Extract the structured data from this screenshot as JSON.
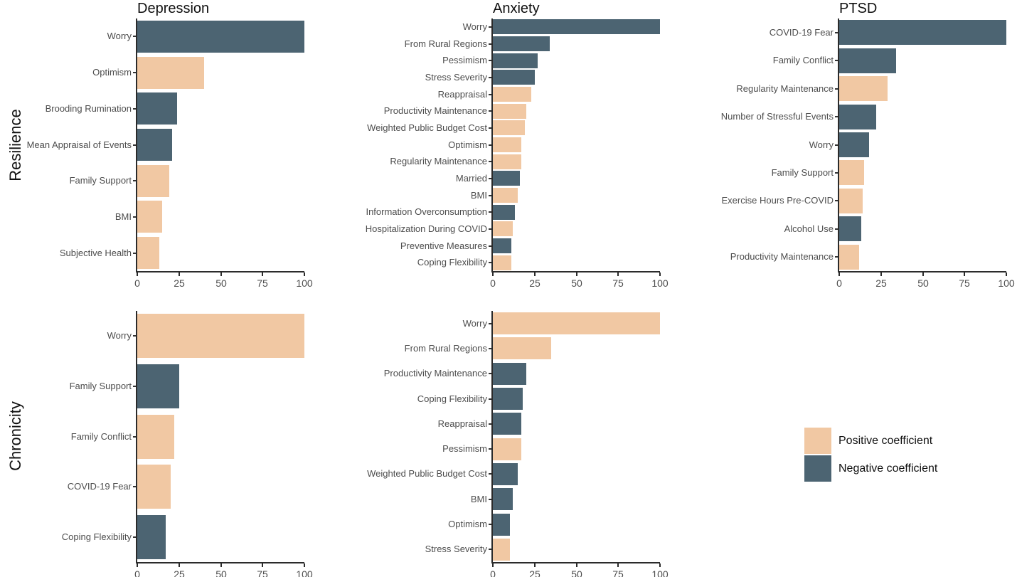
{
  "figure": {
    "row_labels": [
      "Resilience",
      "Chronicity"
    ],
    "column_titles": [
      "Depression",
      "Anxiety",
      "PTSD"
    ],
    "legend": {
      "items": [
        {
          "label": "Positive coefficient",
          "sign": "positive",
          "color": "#F1C8A3"
        },
        {
          "label": "Negative coefficient",
          "sign": "negative",
          "color": "#4C6472"
        }
      ]
    }
  },
  "chart_data": {
    "type": "bar",
    "orientation": "horizontal",
    "grid": false,
    "legend_position": "bottom-right-cell",
    "colors": {
      "positive": "#F1C8A3",
      "negative": "#4C6472"
    },
    "x_axis": {
      "min": 0,
      "max": 100,
      "ticks": [
        0,
        25,
        50,
        75,
        100
      ]
    },
    "panels": [
      {
        "row": "Resilience",
        "col": "Depression",
        "title": "Depression",
        "bars": [
          {
            "label": "Worry",
            "value": 100,
            "sign": "negative"
          },
          {
            "label": "Optimism",
            "value": 40,
            "sign": "positive"
          },
          {
            "label": "Brooding Rumination",
            "value": 24,
            "sign": "negative"
          },
          {
            "label": "Mean Appraisal of Events",
            "value": 21,
            "sign": "negative"
          },
          {
            "label": "Family Support",
            "value": 19,
            "sign": "positive"
          },
          {
            "label": "BMI",
            "value": 15,
            "sign": "positive"
          },
          {
            "label": "Subjective Health",
            "value": 13,
            "sign": "positive"
          }
        ]
      },
      {
        "row": "Resilience",
        "col": "Anxiety",
        "title": "Anxiety",
        "bars": [
          {
            "label": "Worry",
            "value": 100,
            "sign": "negative"
          },
          {
            "label": "From Rural Regions",
            "value": 34,
            "sign": "negative"
          },
          {
            "label": "Pessimism",
            "value": 27,
            "sign": "negative"
          },
          {
            "label": "Stress Severity",
            "value": 25,
            "sign": "negative"
          },
          {
            "label": "Reappraisal",
            "value": 23,
            "sign": "positive"
          },
          {
            "label": "Productivity Maintenance",
            "value": 20,
            "sign": "positive"
          },
          {
            "label": "Weighted Public Budget Cost",
            "value": 19,
            "sign": "positive"
          },
          {
            "label": "Optimism",
            "value": 17,
            "sign": "positive"
          },
          {
            "label": "Regularity Maintenance",
            "value": 17,
            "sign": "positive"
          },
          {
            "label": "Married",
            "value": 16,
            "sign": "negative"
          },
          {
            "label": "BMI",
            "value": 15,
            "sign": "positive"
          },
          {
            "label": "Information Overconsumption",
            "value": 13,
            "sign": "negative"
          },
          {
            "label": "Hospitalization During COVID",
            "value": 12,
            "sign": "positive"
          },
          {
            "label": "Preventive Measures",
            "value": 11,
            "sign": "negative"
          },
          {
            "label": "Coping Flexibility",
            "value": 11,
            "sign": "positive"
          }
        ]
      },
      {
        "row": "Resilience",
        "col": "PTSD",
        "title": "PTSD",
        "bars": [
          {
            "label": "COVID-19 Fear",
            "value": 100,
            "sign": "negative"
          },
          {
            "label": "Family Conflict",
            "value": 34,
            "sign": "negative"
          },
          {
            "label": "Regularity Maintenance",
            "value": 29,
            "sign": "positive"
          },
          {
            "label": "Number of Stressful Events",
            "value": 22,
            "sign": "negative"
          },
          {
            "label": "Worry",
            "value": 18,
            "sign": "negative"
          },
          {
            "label": "Family Support",
            "value": 15,
            "sign": "positive"
          },
          {
            "label": "Exercise Hours Pre-COVID",
            "value": 14,
            "sign": "positive"
          },
          {
            "label": "Alcohol Use",
            "value": 13,
            "sign": "negative"
          },
          {
            "label": "Productivity Maintenance",
            "value": 12,
            "sign": "positive"
          }
        ]
      },
      {
        "row": "Chronicity",
        "col": "Depression",
        "title": "",
        "bars": [
          {
            "label": "Worry",
            "value": 100,
            "sign": "positive"
          },
          {
            "label": "Family Support",
            "value": 25,
            "sign": "negative"
          },
          {
            "label": "Family Conflict",
            "value": 22,
            "sign": "positive"
          },
          {
            "label": "COVID-19 Fear",
            "value": 20,
            "sign": "positive"
          },
          {
            "label": "Coping Flexibility",
            "value": 17,
            "sign": "negative"
          }
        ]
      },
      {
        "row": "Chronicity",
        "col": "Anxiety",
        "title": "",
        "bars": [
          {
            "label": "Worry",
            "value": 100,
            "sign": "positive"
          },
          {
            "label": "From Rural Regions",
            "value": 35,
            "sign": "positive"
          },
          {
            "label": "Productivity Maintenance",
            "value": 20,
            "sign": "negative"
          },
          {
            "label": "Coping Flexibility",
            "value": 18,
            "sign": "negative"
          },
          {
            "label": "Reappraisal",
            "value": 17,
            "sign": "negative"
          },
          {
            "label": "Pessimism",
            "value": 17,
            "sign": "positive"
          },
          {
            "label": "Weighted Public Budget Cost",
            "value": 15,
            "sign": "negative"
          },
          {
            "label": "BMI",
            "value": 12,
            "sign": "negative"
          },
          {
            "label": "Optimism",
            "value": 10,
            "sign": "negative"
          },
          {
            "label": "Stress Severity",
            "value": 10,
            "sign": "positive"
          }
        ]
      }
    ]
  }
}
